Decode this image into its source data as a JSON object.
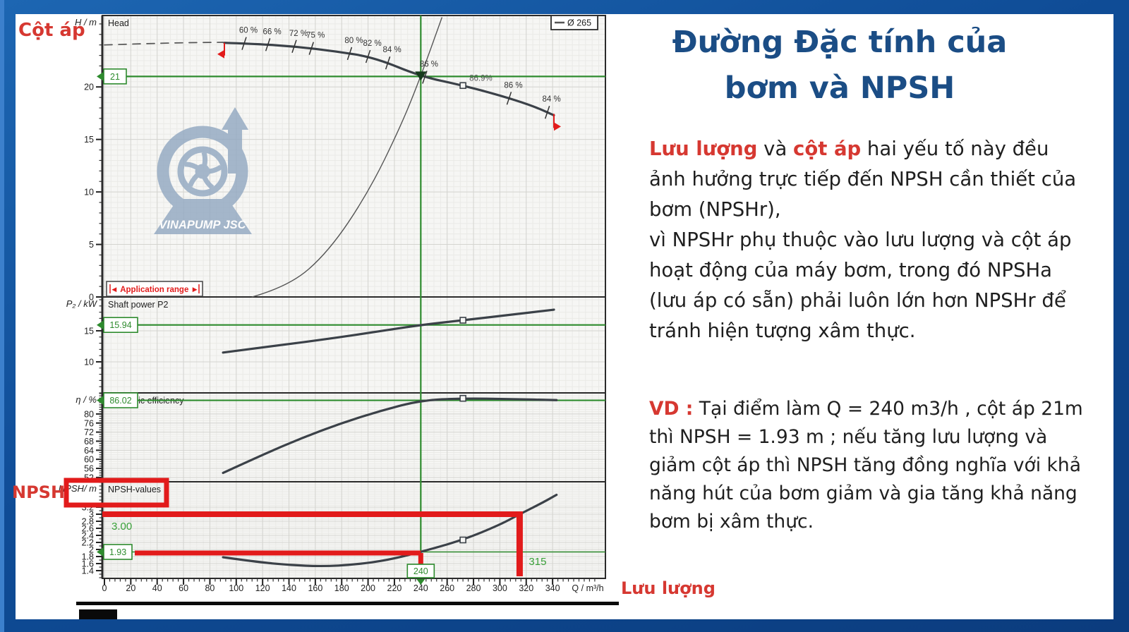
{
  "side_labels": {
    "cot_ap": "Cột áp",
    "npsh": "NPSH",
    "luu_luong": "Lưu lượng"
  },
  "logo": {
    "text": "VINAPUMP JSC"
  },
  "right_panel": {
    "title_line1": "Đường Đặc tính của",
    "title_line2": "bơm và NPSH",
    "para1_segments": [
      {
        "t": "Lưu lượng",
        "red": true
      },
      {
        "t": " và ",
        "red": false
      },
      {
        "t": "cột áp",
        "red": true
      },
      {
        "t": "  hai yếu tố này đều ảnh hưởng trực tiếp đến NPSH cần thiết của bơm (NPSHr),\nvì NPSHr phụ thuộc vào lưu lượng và cột áp hoạt động của máy bơm, trong đó NPSHa (lưu áp có sẵn) phải luôn lớn hơn NPSHr để tránh hiện tượng xâm thực.",
        "red": false
      }
    ],
    "para2_segments": [
      {
        "t": "VD :",
        "red": true
      },
      {
        "t": " Tại điểm làm Q = 240 m3/h , cột áp 21m thì NPSH = 1.93 m ;  nếu tăng lưu lượng  và giảm cột áp thì NPSH tăng đồng nghĩa với khả năng hút của bơm giảm và gia tăng khả năng bơm bị xâm thực.",
        "red": false
      }
    ]
  },
  "chart_data": {
    "type": "line",
    "xlabel": "Q / m³/h",
    "xticks": [
      0,
      20,
      40,
      60,
      80,
      100,
      120,
      140,
      160,
      180,
      200,
      220,
      240,
      260,
      280,
      300,
      320,
      340
    ],
    "xlim": [
      0,
      380
    ],
    "legend": "Ø 265",
    "range_label": "◄ Application range ►",
    "panels": [
      {
        "name": "head",
        "title": "Head",
        "ylabel": "H / m",
        "ylim": [
          0,
          26.8
        ],
        "yticks": [
          0,
          5,
          10,
          15,
          20
        ],
        "series": [
          {
            "name": "head-dashed",
            "style": "dashed",
            "points": [
              [
                0,
                24.0
              ],
              [
                25,
                24.1
              ],
              [
                55,
                24.2
              ],
              [
                90,
                24.25
              ]
            ]
          },
          {
            "name": "head-curve-265",
            "style": "main",
            "points": [
              [
                91,
                24.2
              ],
              [
                115,
                24.1
              ],
              [
                145,
                23.85
              ],
              [
                175,
                23.4
              ],
              [
                205,
                22.8
              ],
              [
                240,
                21.0
              ],
              [
                270,
                20.2
              ],
              [
                300,
                19.2
              ],
              [
                325,
                18.2
              ],
              [
                341,
                17.3
              ]
            ]
          },
          {
            "name": "system-curve",
            "style": "thin",
            "points": [
              [
                112,
                0
              ],
              [
                140,
                1.0
              ],
              [
                170,
                4.3
              ],
              [
                200,
                9.9
              ],
              [
                225,
                16.3
              ],
              [
                240,
                21.0
              ],
              [
                256,
                26.6
              ]
            ]
          }
        ],
        "eff_labels": [
          {
            "q": 106,
            "t": "60 %"
          },
          {
            "q": 124,
            "t": "66 %"
          },
          {
            "q": 144,
            "t": "72 %"
          },
          {
            "q": 157,
            "t": "75 %"
          },
          {
            "q": 186,
            "t": "80 %"
          },
          {
            "q": 200,
            "t": "82 %"
          },
          {
            "q": 215,
            "t": "84 %"
          },
          {
            "q": 243,
            "t": "86 %"
          },
          {
            "q": 307,
            "t": "86 %"
          },
          {
            "q": 336,
            "t": "84 %"
          }
        ],
        "bep_label": {
          "q": 272,
          "t": "86.9%"
        },
        "hline": 21,
        "box": "21"
      },
      {
        "name": "power",
        "title": "Shaft power P2",
        "ylabel": "P₂ / kW",
        "ylim": [
          5,
          20.45
        ],
        "yticks": [
          10,
          15
        ],
        "series": [
          {
            "name": "power-curve",
            "style": "main",
            "points": [
              [
                90,
                11.5
              ],
              [
                130,
                12.6
              ],
              [
                170,
                13.7
              ],
              [
                205,
                14.8
              ],
              [
                240,
                15.94
              ],
              [
                272,
                16.7
              ],
              [
                305,
                17.5
              ],
              [
                341,
                18.4
              ]
            ]
          }
        ],
        "marker_q": 272,
        "hline": 15.94,
        "box": "15.94"
      },
      {
        "name": "efficiency",
        "title": "Hydraulic efficiency",
        "ylabel": "η / %",
        "ylim": [
          50.1,
          89.3
        ],
        "yticks": [
          52,
          56,
          60,
          64,
          68,
          72,
          76,
          80
        ],
        "series": [
          {
            "name": "efficiency-curve",
            "style": "main",
            "points": [
              [
                90,
                54
              ],
              [
                120,
                62
              ],
              [
                150,
                69.5
              ],
              [
                180,
                76
              ],
              [
                210,
                81.5
              ],
              [
                240,
                86.02
              ],
              [
                272,
                86.9
              ],
              [
                308,
                86.6
              ],
              [
                343,
                86.1
              ]
            ]
          }
        ],
        "marker_q": 272,
        "hline": 86.02,
        "box": "86.02"
      },
      {
        "name": "npsh",
        "title": "NPSH-values",
        "ylabel": "NPSH/ m",
        "ylim": [
          1.18,
          3.92
        ],
        "yticks": [
          1.4,
          1.6,
          1.8,
          2,
          2.2,
          2.4,
          2.6,
          2.8,
          3,
          3.2
        ],
        "series": [
          {
            "name": "npsh-curve",
            "style": "main",
            "points": [
              [
                90,
                1.78
              ],
              [
                115,
                1.65
              ],
              [
                140,
                1.56
              ],
              [
                165,
                1.52
              ],
              [
                190,
                1.57
              ],
              [
                215,
                1.7
              ],
              [
                240,
                1.93
              ],
              [
                272,
                2.27
              ],
              [
                300,
                2.7
              ],
              [
                315,
                3.0
              ],
              [
                330,
                3.28
              ],
              [
                343,
                3.55
              ]
            ]
          }
        ],
        "marker_q": 272,
        "hline": 1.93,
        "box": "1.93",
        "extra": {
          "npsh_high": 3.0,
          "label_high": "3.00",
          "q_high": 315,
          "q_high_label": "315",
          "q_op": 240,
          "q_op_label": "240"
        }
      }
    ],
    "annotations": {
      "op_q": 240,
      "op_head": 21,
      "colors": {
        "green": "#2e8b2e",
        "green_text": "#3aa13a",
        "red": "#e21b1b",
        "curve": "#3b4148"
      }
    }
  }
}
